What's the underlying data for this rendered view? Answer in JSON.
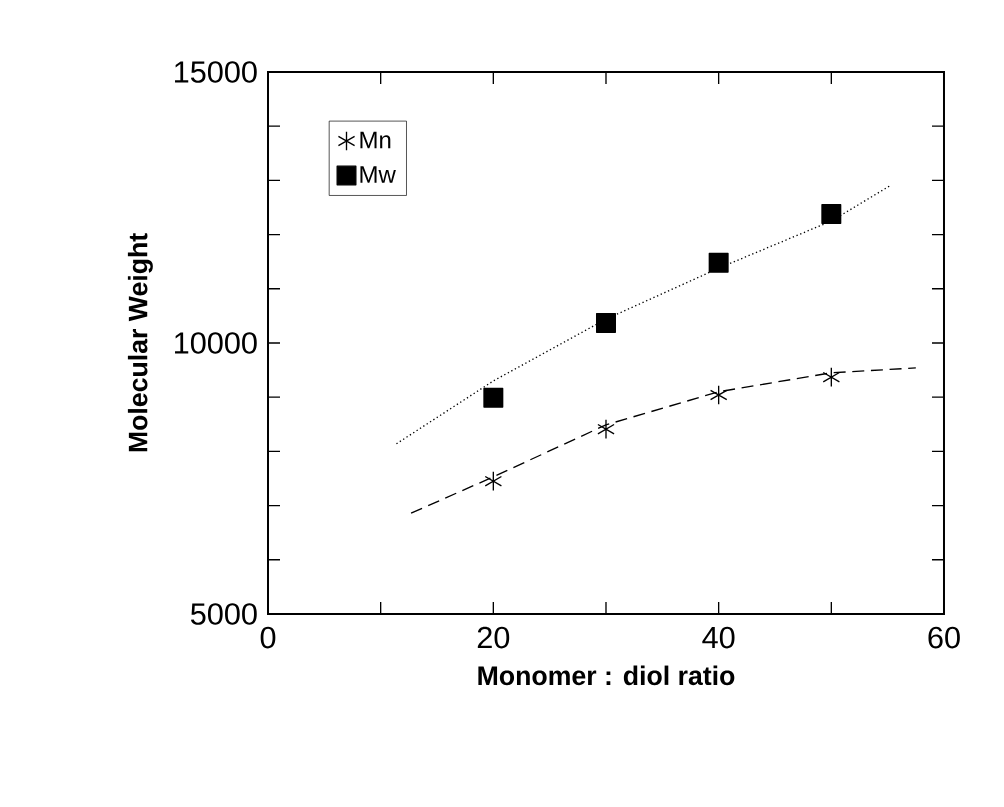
{
  "chart_data": {
    "type": "scatter",
    "xlabel": "Monomer : diol ratio",
    "ylabel": "Molecular Weight",
    "series": [
      {
        "name": "Mn",
        "color": "#000000",
        "marker": "cross",
        "x": [
          20,
          30,
          40,
          50
        ],
        "values": [
          7450,
          8410,
          9040,
          9370
        ]
      },
      {
        "name": "Mw",
        "color": "#000000",
        "marker": "square",
        "x": [
          20,
          30,
          40,
          50
        ],
        "values": [
          8990,
          10370,
          11480,
          12380
        ]
      },
      {
        "type": "line",
        "color": "#000000",
        "marker": "none",
        "line_style": "dashed",
        "x": [
          12.7,
          20,
          30,
          40,
          50,
          57.5
        ],
        "values": [
          6860,
          7530,
          8490,
          9100,
          9450,
          9540
        ]
      },
      {
        "type": "line",
        "color": "#000000",
        "marker": "none",
        "line_style": "dotted",
        "x": [
          11.4,
          20,
          30,
          40,
          50,
          55.2
        ],
        "values": [
          8140,
          9300,
          10440,
          11380,
          12250,
          12900
        ]
      }
    ],
    "xlim": [
      0,
      60
    ],
    "ylim": [
      5000,
      15000
    ],
    "xticks": [
      0,
      {
        "value": 10,
        "label": null
      },
      20,
      {
        "value": 30,
        "label": null
      },
      40,
      {
        "value": 50,
        "label": null
      },
      60
    ],
    "yticks": [
      5000,
      {
        "value": 6000,
        "label": null
      },
      {
        "value": 7000,
        "label": null
      },
      {
        "value": 8000,
        "label": null
      },
      {
        "value": 9000,
        "label": null
      },
      10000,
      {
        "value": 11000,
        "label": null
      },
      {
        "value": 12000,
        "label": null
      },
      {
        "value": 13000,
        "label": null
      },
      {
        "value": 14000,
        "label": null
      },
      15000
    ],
    "legend": "top left",
    "grid": false
  }
}
